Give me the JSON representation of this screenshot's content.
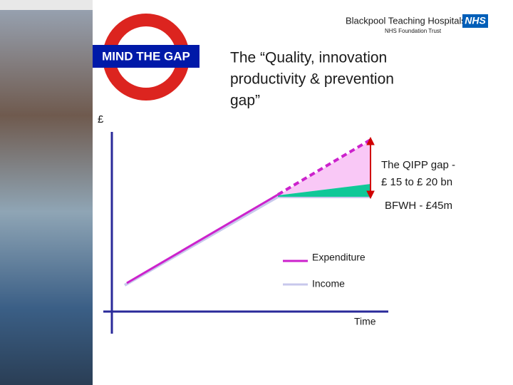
{
  "header": {
    "organisation": "Blackpool Teaching Hospitals",
    "nhs": "NHS",
    "subtitle": "NHS Foundation Trust"
  },
  "roundel": {
    "label": "MIND THE GAP"
  },
  "title": {
    "lines": [
      "The “Quality, innovation",
      "productivity & prevention",
      "gap”"
    ]
  },
  "diagram": {
    "y_axis_label": "£",
    "x_axis_label": "Time",
    "gap_label": [
      "The QIPP gap -",
      "£ 15 to £ 20 bn"
    ],
    "local_label": "BFWH - £45m",
    "legend": [
      "Expenditure",
      "Income"
    ]
  }
}
